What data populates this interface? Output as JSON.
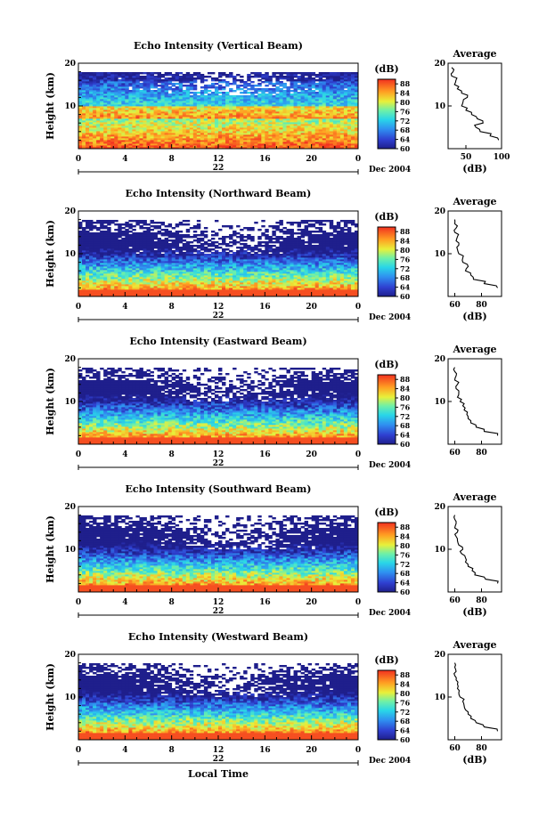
{
  "chart_data": [
    {
      "type": "heatmap",
      "title": "Echo Intensity (Vertical Beam)",
      "ylabel": "Height (km)",
      "xticks": [
        "0",
        "4",
        "8",
        "12",
        "16",
        "20",
        "0"
      ],
      "yticks": [
        "20",
        "10"
      ],
      "ylim": [
        0,
        20
      ],
      "xlim": [
        0,
        24
      ],
      "date_day": "22",
      "date_month": "Dec 2004",
      "colorbar": {
        "unit": "(dB)",
        "ticks": [
          "88",
          "84",
          "80",
          "76",
          "72",
          "68",
          "64",
          "60"
        ],
        "range": [
          60,
          90
        ]
      },
      "profile": {
        "title": "Average",
        "xlabel": "(dB)",
        "xticks": [
          "50",
          "100"
        ],
        "yticks": [
          "20",
          "10"
        ],
        "xlim": [
          25,
          100
        ],
        "heights": [
          2,
          3,
          4,
          5,
          6,
          7,
          8,
          9,
          10,
          11,
          12,
          13,
          14,
          15,
          16,
          17,
          18,
          19
        ],
        "values": [
          96,
          84,
          70,
          64,
          74,
          66,
          58,
          50,
          44,
          46,
          52,
          44,
          38,
          34,
          36,
          30,
          32,
          30
        ]
      }
    },
    {
      "type": "heatmap",
      "title": "Echo Intensity (Northward Beam)",
      "ylabel": "Height (km)",
      "xticks": [
        "0",
        "4",
        "8",
        "12",
        "16",
        "20",
        "0"
      ],
      "yticks": [
        "20",
        "10"
      ],
      "ylim": [
        0,
        20
      ],
      "xlim": [
        0,
        24
      ],
      "date_day": "22",
      "date_month": "Dec 2004",
      "colorbar": {
        "unit": "(dB)",
        "ticks": [
          "88",
          "84",
          "80",
          "76",
          "72",
          "68",
          "64",
          "60"
        ],
        "range": [
          60,
          90
        ]
      },
      "profile": {
        "title": "Average",
        "xlabel": "(dB)",
        "xticks": [
          "60",
          "80"
        ],
        "yticks": [
          "20",
          "10"
        ],
        "xlim": [
          55,
          95
        ],
        "heights": [
          2,
          3,
          4,
          5,
          6,
          7,
          8,
          9,
          10,
          11,
          12,
          13,
          14,
          15,
          16,
          17,
          18
        ],
        "values": [
          92,
          82,
          74,
          72,
          68,
          70,
          66,
          66,
          63,
          62,
          63,
          61,
          62,
          60,
          61,
          60,
          60
        ]
      }
    },
    {
      "type": "heatmap",
      "title": "Echo Intensity (Eastward Beam)",
      "ylabel": "Height (km)",
      "xticks": [
        "0",
        "4",
        "8",
        "12",
        "16",
        "20",
        "0"
      ],
      "yticks": [
        "20",
        "10"
      ],
      "ylim": [
        0,
        20
      ],
      "xlim": [
        0,
        24
      ],
      "date_day": "22",
      "date_month": "Dec 2004",
      "colorbar": {
        "unit": "(dB)",
        "ticks": [
          "88",
          "84",
          "80",
          "76",
          "72",
          "68",
          "64",
          "60"
        ],
        "range": [
          60,
          90
        ]
      },
      "profile": {
        "title": "Average",
        "xlabel": "",
        "xticks": [
          "60",
          "80"
        ],
        "yticks": [
          "20",
          "10"
        ],
        "xlim": [
          55,
          95
        ],
        "heights": [
          2,
          3,
          4,
          5,
          6,
          7,
          8,
          9,
          10,
          11,
          12,
          13,
          14,
          15,
          16,
          17,
          18
        ],
        "values": [
          92,
          82,
          76,
          72,
          70,
          69,
          67,
          66,
          64,
          62,
          63,
          61,
          62,
          60,
          61,
          60,
          60
        ]
      }
    },
    {
      "type": "heatmap",
      "title": "Echo Intensity (Southward Beam)",
      "ylabel": "Height (km)",
      "xticks": [
        "0",
        "4",
        "8",
        "12",
        "16",
        "20",
        "0"
      ],
      "yticks": [
        "20",
        "10"
      ],
      "ylim": [
        0,
        20
      ],
      "xlim": [
        0,
        24
      ],
      "date_day": "22",
      "date_month": "Dec 2004",
      "colorbar": {
        "unit": "(dB)",
        "ticks": [
          "88",
          "84",
          "80",
          "76",
          "72",
          "68",
          "64",
          "60"
        ],
        "range": [
          60,
          90
        ]
      },
      "profile": {
        "title": "Average",
        "xlabel": "(dB)",
        "xticks": [
          "60",
          "80"
        ],
        "yticks": [
          "20",
          "10"
        ],
        "xlim": [
          55,
          95
        ],
        "heights": [
          2,
          3,
          4,
          5,
          6,
          7,
          8,
          9,
          10,
          11,
          12,
          13,
          14,
          15,
          16,
          17,
          18
        ],
        "values": [
          92,
          83,
          75,
          73,
          70,
          68,
          68,
          65,
          66,
          63,
          62,
          61,
          62,
          60,
          61,
          60,
          60
        ]
      }
    },
    {
      "type": "heatmap",
      "title": "Echo Intensity (Westward Beam)",
      "ylabel": "Height (km)",
      "xticks": [
        "0",
        "4",
        "8",
        "12",
        "16",
        "20",
        "0"
      ],
      "yticks": [
        "20",
        "10"
      ],
      "ylim": [
        0,
        20
      ],
      "xlim": [
        0,
        24
      ],
      "date_day": "22",
      "date_month": "Dec 2004",
      "xlabel": "Local Time",
      "colorbar": {
        "unit": "(dB)",
        "ticks": [
          "88",
          "84",
          "80",
          "76",
          "72",
          "68",
          "64",
          "60"
        ],
        "range": [
          60,
          90
        ]
      },
      "profile": {
        "title": "Average",
        "xlabel": "(dB)",
        "xticks": [
          "60",
          "80"
        ],
        "yticks": [
          "20",
          "10"
        ],
        "xlim": [
          55,
          95
        ],
        "heights": [
          2,
          3,
          4,
          5,
          6,
          7,
          8,
          9,
          10,
          11,
          12,
          13,
          14,
          15,
          16,
          17,
          18
        ],
        "values": [
          92,
          82,
          76,
          72,
          70,
          68,
          67,
          66,
          64,
          63,
          62,
          62,
          61,
          60,
          61,
          60,
          60
        ]
      }
    }
  ]
}
